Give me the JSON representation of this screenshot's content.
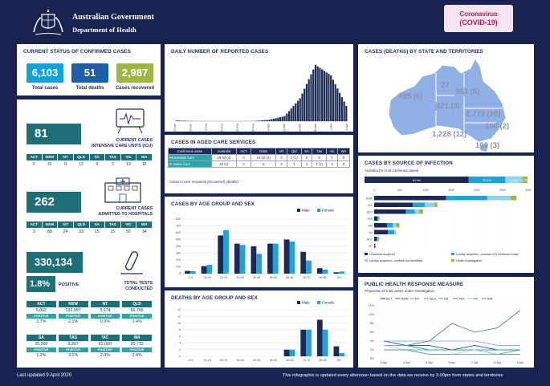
{
  "header": {
    "gov": "Australian Government",
    "dept": "Department of Health",
    "badge_top": "Coronavirus",
    "badge_bottom": "(COVID-19)"
  },
  "status": {
    "title": "CURRENT STATUS OF CONFIRMED CASES",
    "items": [
      {
        "value": "6,103",
        "label": "Total cases",
        "color": "#14a0db"
      },
      {
        "value": "51",
        "label": "Total deaths",
        "color": "#1f5fa8"
      },
      {
        "value": "2,987",
        "label": "Cases recovered",
        "color": "#9cb640"
      }
    ]
  },
  "icu": {
    "value": "81",
    "label1": "CURRENT CASES",
    "label2": "INTENSIVE CARE UNITS (ICU)",
    "states": [
      "ACT",
      "NSW",
      "NT",
      "QLD",
      "SA",
      "TAS",
      "VIC",
      "WA"
    ],
    "values": [
      "2",
      "31",
      "0",
      "12",
      "6",
      "2",
      "13",
      "15"
    ]
  },
  "hosp": {
    "value": "262",
    "label1": "CURRENT CASES",
    "label2": "ADMITTED TO HOSPITALS",
    "states": [
      "ACT",
      "NSW",
      "NT",
      "QLD",
      "SA",
      "TAS",
      "VIC",
      "WA"
    ],
    "values": [
      "3",
      "88",
      "24",
      "33",
      "15",
      "15",
      "50",
      "34"
    ]
  },
  "tests": {
    "value": "330,134",
    "pct": "1.8%",
    "pct_label": "POSITIVE",
    "label1": "TOTAL TESTS",
    "label2": "CONDUCTED",
    "positive_label": "POSITIVE",
    "row1": [
      {
        "state": "ACT",
        "value": "5,802",
        "pos": "1.7%"
      },
      {
        "state": "NSW",
        "value": "132,997",
        "pos": "2.1%"
      },
      {
        "state": "NT",
        "value": "3,174",
        "pos": "0.9%"
      },
      {
        "state": "QLD",
        "value": "66,766",
        "pos": "1.4%"
      }
    ],
    "row2": [
      {
        "state": "SA",
        "value": "35,266",
        "pos": "1.2%"
      },
      {
        "state": "TAS",
        "value": "3,397",
        "pos": "3.1%"
      },
      {
        "state": "VIC",
        "value": "62,000",
        "pos": "2.0%"
      },
      {
        "state": "WA",
        "value": "20,712",
        "pos": "2.4%"
      }
    ]
  },
  "daily": {
    "title": "DAILY NUMBER OF REPORTED CASES",
    "xlabels": [
      "22-Jan",
      "29-Jan",
      "5-Feb",
      "12-Feb",
      "19-Feb",
      "26-Feb",
      "4-Mar",
      "11-Mar",
      "18-Mar",
      "25-Mar",
      "1-Apr",
      "8-Apr"
    ]
  },
  "aged": {
    "title": "CASES IN AGED CARE SERVICES",
    "headers": [
      "Confirmed cases",
      "Australia",
      "ACT",
      "NSW",
      "NT",
      "Qld",
      "SA",
      "Tas",
      "Vic",
      "WA"
    ],
    "rows": [
      {
        "label": "Residential Care",
        "cells": [
          "26 (5) (4)",
          "0",
          "24 (5) (4)",
          "0",
          "1 (1)",
          "0",
          "0",
          "1",
          "0"
        ]
      },
      {
        "label": "In Home Care",
        "cells": [
          "10 (1)",
          "0",
          "5",
          "0",
          "1",
          "1",
          "1 (1)",
          "2",
          "0"
        ]
      }
    ],
    "note": "Cases in care recipients (recovered) (deaths)"
  },
  "age": {
    "title": "CASES BY AGE GROUP AND SEX",
    "legend_male": "Male",
    "legend_female": "Female"
  },
  "deaths": {
    "title": "DEATHS BY AGE GROUP AND SEX",
    "legend_male": "Male",
    "legend_female": "Female"
  },
  "map": {
    "title": "CASES (DEATHS) BY STATE AND TERRITORIES",
    "labels": [
      {
        "name": "WA",
        "text": "495 (6)"
      },
      {
        "name": "NT",
        "text": "27"
      },
      {
        "name": "QLD",
        "text": "953 (5)"
      },
      {
        "name": "SA",
        "text": "421 (3)"
      },
      {
        "name": "NSW",
        "text": "2,773 (20)"
      },
      {
        "name": "ACT",
        "text": "100 (2)"
      },
      {
        "name": "VIC",
        "text": "1,228 (12)"
      },
      {
        "name": "TAS",
        "text": "106 (3)"
      }
    ]
  },
  "source": {
    "title": "CASES BY SOURCE OF INFECTION",
    "sub": "Australia (% of all confirmed cases)",
    "pcts": [
      "63.9%",
      "22.5%",
      "10.4%",
      "3.2%"
    ],
    "legend": [
      "Overseas acquired",
      "Locally acquired—contact of a confirmed case",
      "Locally acquired—contact not identified",
      "Under investigation"
    ],
    "ticks": [
      "0",
      "500",
      "1000",
      "1500",
      "2000",
      "2500",
      "3000"
    ]
  },
  "public": {
    "title": "PUBLIC HEALTH RESPONSE MEASURE",
    "sub": "Proportion of total cases under investigation",
    "series": [
      "ACT",
      "NSW",
      "NT",
      "QLD",
      "SA",
      "TAS",
      "VIC",
      "WA"
    ],
    "xlabels": [
      "3-Apr",
      "4-Apr",
      "5-Apr",
      "6-Apr",
      "7-Apr",
      "8-Apr",
      "9-Apr"
    ],
    "ylabels": [
      "0%",
      "2%",
      "4%",
      "6%",
      "8%",
      "10%",
      "12%"
    ]
  },
  "footer": {
    "left": "Last updated 9 April 2020",
    "right": "This infographic is updated every afternoon based on the data we receive by 3.00pm from states and territories"
  },
  "chart_data": [
    {
      "type": "bar",
      "title": "DAILY NUMBER OF REPORTED CASES",
      "note": "approximate values",
      "categories": [
        "22-Jan",
        "29-Jan",
        "5-Feb",
        "12-Feb",
        "19-Feb",
        "26-Feb",
        "4-Mar",
        "11-Mar",
        "18-Mar",
        "25-Mar",
        "1-Apr",
        "8-Apr"
      ],
      "values": [
        4,
        1,
        0,
        0,
        0,
        1,
        9,
        33,
        150,
        370,
        300,
        100
      ]
    },
    {
      "type": "bar",
      "title": "CASES BY AGE GROUP AND SEX",
      "categories": [
        "0-9",
        "10-19",
        "20-29",
        "30-39",
        "40-49",
        "50-59",
        "60-69",
        "70-79",
        "80-89",
        "90+"
      ],
      "series": [
        {
          "name": "Male",
          "values": [
            40,
            110,
            560,
            440,
            400,
            440,
            500,
            320,
            80,
            20
          ]
        },
        {
          "name": "Female",
          "values": [
            35,
            130,
            640,
            420,
            290,
            440,
            470,
            190,
            60,
            30
          ]
        }
      ],
      "ylim": [
        0,
        800
      ]
    },
    {
      "type": "bar",
      "title": "DEATHS BY AGE GROUP AND SEX",
      "categories": [
        "0-9",
        "10-19",
        "20-29",
        "30-39",
        "40-49",
        "50-59",
        "60-69",
        "70-79",
        "80-89",
        "90+"
      ],
      "series": [
        {
          "name": "Male",
          "values": [
            0,
            0,
            0,
            0,
            0,
            0,
            2,
            8,
            11,
            3
          ]
        },
        {
          "name": "Female",
          "values": [
            0,
            0,
            0,
            0,
            0,
            0,
            2,
            8,
            8,
            1
          ]
        }
      ],
      "ylim": [
        0,
        14
      ]
    },
    {
      "type": "bar",
      "title": "CASES BY SOURCE OF INFECTION",
      "orientation": "horizontal",
      "categories": [
        "NSW",
        "VIC",
        "QLD",
        "TAS",
        "WA",
        "SA",
        "ACT",
        "NT"
      ],
      "series": [
        {
          "name": "Overseas acquired",
          "values": [
            1400,
            750,
            620,
            60,
            250,
            270,
            50,
            15
          ]
        },
        {
          "name": "Locally acquired—contact of a confirmed case",
          "values": [
            800,
            240,
            170,
            25,
            110,
            120,
            20,
            8
          ]
        },
        {
          "name": "Locally acquired—contact not identified",
          "values": [
            450,
            180,
            90,
            8,
            70,
            20,
            10,
            2
          ]
        },
        {
          "name": "Under investigation",
          "values": [
            120,
            60,
            70,
            10,
            60,
            10,
            20,
            2
          ]
        }
      ]
    },
    {
      "type": "line",
      "title": "PUBLIC HEALTH RESPONSE MEASURE",
      "x": [
        "3-Apr",
        "4-Apr",
        "5-Apr",
        "6-Apr",
        "7-Apr",
        "8-Apr",
        "9-Apr"
      ],
      "series": [
        {
          "name": "ACT",
          "values": [
            4,
            3,
            3,
            2,
            3,
            2,
            2
          ]
        },
        {
          "name": "NSW",
          "values": [
            4,
            3,
            2,
            2,
            2,
            2,
            2
          ]
        },
        {
          "name": "NT",
          "values": [
            4,
            4,
            4,
            4,
            4,
            3,
            3
          ]
        },
        {
          "name": "QLD",
          "values": [
            3,
            3,
            2,
            2,
            2,
            2,
            2
          ]
        },
        {
          "name": "SA",
          "values": [
            2,
            2,
            2,
            2,
            2,
            1,
            2
          ]
        },
        {
          "name": "TAS",
          "values": [
            4,
            3,
            4,
            8,
            6,
            7,
            11
          ]
        },
        {
          "name": "VIC",
          "values": [
            3,
            2,
            1,
            1,
            2,
            1,
            1
          ]
        },
        {
          "name": "WA",
          "values": [
            2,
            2,
            1,
            1,
            1,
            1,
            1
          ]
        }
      ],
      "ylim": [
        0,
        12
      ]
    }
  ],
  "colors": {
    "navy": "#1b2a55",
    "teal": "#1f6f78",
    "male": "#1b2a55",
    "female": "#1ea2d8"
  }
}
